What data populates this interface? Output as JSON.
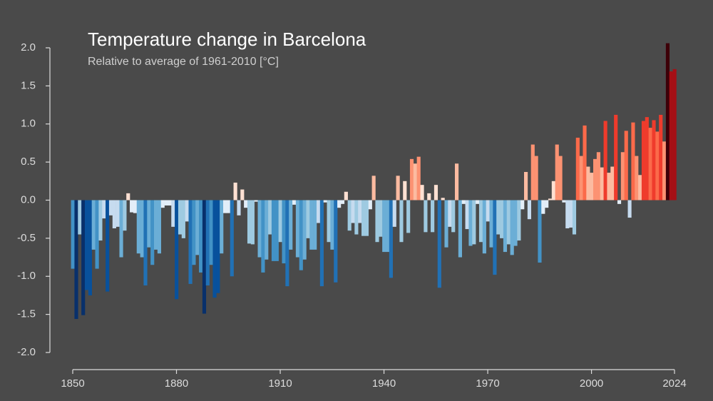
{
  "chart_data": {
    "type": "bar",
    "title": "Temperature change in Barcelona",
    "subtitle": "Relative to average of 1961-2010  [°C]",
    "x": [
      1850,
      1851,
      1852,
      1853,
      1854,
      1855,
      1856,
      1857,
      1858,
      1859,
      1860,
      1861,
      1862,
      1863,
      1864,
      1865,
      1866,
      1867,
      1868,
      1869,
      1870,
      1871,
      1872,
      1873,
      1874,
      1875,
      1876,
      1877,
      1878,
      1879,
      1880,
      1881,
      1882,
      1883,
      1884,
      1885,
      1886,
      1887,
      1888,
      1889,
      1890,
      1891,
      1892,
      1893,
      1894,
      1895,
      1896,
      1897,
      1898,
      1899,
      1900,
      1901,
      1902,
      1903,
      1904,
      1905,
      1906,
      1907,
      1908,
      1909,
      1910,
      1911,
      1912,
      1913,
      1914,
      1915,
      1916,
      1917,
      1918,
      1919,
      1920,
      1921,
      1922,
      1923,
      1924,
      1925,
      1926,
      1927,
      1928,
      1929,
      1930,
      1931,
      1932,
      1933,
      1934,
      1935,
      1936,
      1937,
      1938,
      1939,
      1940,
      1941,
      1942,
      1943,
      1944,
      1945,
      1946,
      1947,
      1948,
      1949,
      1950,
      1951,
      1952,
      1953,
      1954,
      1955,
      1956,
      1957,
      1958,
      1959,
      1960,
      1961,
      1962,
      1963,
      1964,
      1965,
      1966,
      1967,
      1968,
      1969,
      1970,
      1971,
      1972,
      1973,
      1974,
      1975,
      1976,
      1977,
      1978,
      1979,
      1980,
      1981,
      1982,
      1983,
      1984,
      1985,
      1986,
      1987,
      1988,
      1989,
      1990,
      1991,
      1992,
      1993,
      1994,
      1995,
      1996,
      1997,
      1998,
      1999,
      2000,
      2001,
      2002,
      2003,
      2004,
      2005,
      2006,
      2007,
      2008,
      2009,
      2010,
      2011,
      2012,
      2013,
      2014,
      2015,
      2016,
      2017,
      2018,
      2019,
      2020,
      2021,
      2022,
      2023,
      2024
    ],
    "values": [
      -0.9,
      -1.56,
      -0.45,
      -1.51,
      -1.18,
      -1.25,
      -0.65,
      -0.9,
      -0.53,
      -0.24,
      -1.2,
      -0.2,
      -0.37,
      -0.35,
      -0.75,
      -0.4,
      0.09,
      -0.16,
      -0.17,
      -0.7,
      -0.75,
      -1.12,
      -0.62,
      -0.85,
      -0.65,
      -0.7,
      -0.1,
      -0.07,
      -0.07,
      -0.35,
      -1.3,
      -0.45,
      -0.5,
      -0.28,
      -1.1,
      -0.85,
      -0.72,
      -0.95,
      -1.49,
      -1.12,
      -0.85,
      -1.28,
      -1.22,
      -0.7,
      -0.17,
      -0.17,
      -1.0,
      0.23,
      -0.2,
      0.14,
      -0.1,
      -0.57,
      -0.58,
      -0.02,
      -0.75,
      -0.95,
      -0.78,
      -0.45,
      -0.8,
      -0.8,
      -0.55,
      -0.83,
      -1.13,
      -0.65,
      -0.06,
      -0.75,
      -0.92,
      -0.78,
      -0.5,
      -0.65,
      -0.65,
      -0.3,
      -1.13,
      -0.03,
      -0.55,
      -0.65,
      -1.08,
      -0.1,
      -0.05,
      0.11,
      -0.4,
      -0.3,
      -0.45,
      -0.3,
      -0.47,
      -0.47,
      -0.12,
      0.32,
      -0.55,
      -0.48,
      -0.68,
      -0.68,
      -1.02,
      -0.35,
      0.32,
      -0.55,
      0.25,
      -0.43,
      0.54,
      0.48,
      0.57,
      0.2,
      -0.42,
      0.09,
      -0.42,
      0.2,
      -1.15,
      0.03,
      -0.62,
      -0.35,
      -0.42,
      0.48,
      -0.75,
      -0.05,
      -0.38,
      -0.6,
      -0.58,
      -0.05,
      -0.55,
      -0.7,
      -0.28,
      -0.62,
      -0.98,
      -0.45,
      -0.5,
      -0.68,
      -0.58,
      -0.72,
      -0.6,
      -0.53,
      -0.12,
      0.37,
      -0.25,
      0.73,
      0.58,
      -0.82,
      -0.18,
      -0.1,
      0.02,
      0.25,
      0.73,
      0.58,
      -0.03,
      -0.37,
      -0.36,
      -0.45,
      0.82,
      0.58,
      0.98,
      0.44,
      0.36,
      0.54,
      0.63,
      0.43,
      1.04,
      0.36,
      0.44,
      1.12,
      -0.05,
      0.63,
      0.91,
      -0.23,
      1.02,
      0.58,
      0.33,
      1.04,
      1.09,
      0.95,
      1.05,
      0.9,
      1.12,
      0.77,
      2.06,
      1.69,
      1.72
    ],
    "colormap": [
      "#08306b",
      "#08519c",
      "#2171b5",
      "#4292c6",
      "#6baed6",
      "#9ecae1",
      "#c6dbef",
      "#e3eef8",
      "#fee0d2",
      "#fcbba1",
      "#fc9272",
      "#fb6a4a",
      "#ef3b2c",
      "#cb181d",
      "#a50f15",
      "#3d0008"
    ],
    "xlim": [
      1850,
      2024
    ],
    "xticks": [
      1850,
      1880,
      1910,
      1940,
      1970,
      2000,
      2024
    ],
    "ylim": [
      -2,
      2
    ],
    "yticks": [
      {
        "value": -2,
        "label": "-2.0"
      },
      -1.5,
      {
        "value": -1,
        "label": "-1.0"
      },
      -0.5,
      {
        "value": 0,
        "label": "0.0"
      },
      0.5,
      {
        "value": 1,
        "label": "1.0"
      },
      1.5,
      {
        "value": 2,
        "label": "2.0"
      }
    ],
    "grid": false
  }
}
